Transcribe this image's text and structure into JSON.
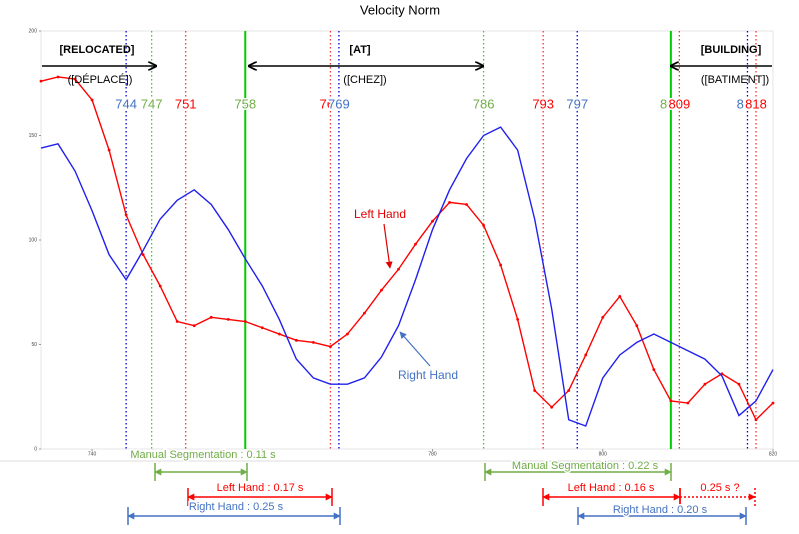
{
  "chart_data": {
    "type": "line",
    "title": "Velocity Norm",
    "xlim": [
      734,
      820
    ],
    "xticks": [
      740,
      760,
      780,
      800,
      820
    ],
    "ylim": [
      0,
      200
    ],
    "yticks": [
      0,
      50,
      100,
      150,
      200
    ],
    "x": [
      734,
      736,
      738,
      740,
      742,
      744,
      746,
      748,
      750,
      752,
      754,
      756,
      758,
      760,
      762,
      764,
      766,
      768,
      770,
      772,
      774,
      776,
      778,
      780,
      782,
      784,
      786,
      788,
      790,
      792,
      794,
      796,
      798,
      800,
      802,
      804,
      806,
      808,
      810,
      812,
      814,
      816,
      818,
      820
    ],
    "series": [
      {
        "name": "Left Hand",
        "color": "#ff0000",
        "markers": true,
        "values": [
          176,
          178,
          177,
          167,
          143,
          112,
          93,
          78,
          61,
          59,
          63,
          62,
          61,
          58,
          55,
          52,
          51,
          49,
          55,
          65,
          76,
          86,
          98,
          109,
          118,
          117,
          107,
          88,
          62,
          28,
          20,
          28,
          45,
          63,
          73,
          59,
          38,
          23,
          22,
          31,
          36,
          31,
          14,
          22
        ]
      },
      {
        "name": "Right Hand",
        "color": "#2020ee",
        "markers": false,
        "values": [
          144,
          146,
          133,
          114,
          93,
          81,
          95,
          110,
          119,
          124,
          117,
          105,
          91,
          78,
          62,
          43,
          34,
          31,
          31,
          34,
          44,
          59,
          81,
          105,
          124,
          139,
          150,
          154,
          143,
          110,
          67,
          14,
          11,
          34,
          45,
          51,
          55,
          51,
          47,
          43,
          35,
          16,
          23,
          38
        ]
      }
    ],
    "frame_markers": [
      {
        "value": 744,
        "color": "#0000cc",
        "label_color": "#4472c4",
        "style": "dotted"
      },
      {
        "value": 747,
        "color": "#33cc33",
        "label_color": "#70ad47",
        "style": "dotted"
      },
      {
        "value": 751,
        "color": "#ff3333",
        "label_color": "#ff0000",
        "style": "dotted"
      },
      {
        "value": 758,
        "color": "#00cc00",
        "label_color": "#70ad47",
        "style": "solid"
      },
      {
        "value": 768,
        "color": "#ff3333",
        "label_color": "#ff0000",
        "style": "dotted"
      },
      {
        "value": 769,
        "color": "#0000cc",
        "label_color": "#4472c4",
        "style": "dotted"
      },
      {
        "value": 786,
        "color": "#33cc33",
        "label_color": "#70ad47",
        "style": "dotted"
      },
      {
        "value": 793,
        "color": "#ff3333",
        "label_color": "#ff0000",
        "style": "dotted"
      },
      {
        "value": 797,
        "color": "#0000cc",
        "label_color": "#4472c4",
        "style": "dotted"
      },
      {
        "value": 808,
        "color": "#00cc00",
        "label_color": "#70ad47",
        "style": "solid"
      },
      {
        "value": 809,
        "color": "#ff3333",
        "label_color": "#ff0000",
        "style": "dotted"
      },
      {
        "value": 817,
        "color": "#0000cc",
        "label_color": "#4472c4",
        "style": "dotted"
      },
      {
        "value": 818,
        "color": "#ff3333",
        "label_color": "#ff0000",
        "style": "dotted"
      }
    ],
    "signs": [
      {
        "label": "[RELOCATED]",
        "translation": "([DÉPLACÉ])"
      },
      {
        "label": "[AT]",
        "translation": "([CHEZ])"
      },
      {
        "label": "[BUILDING]",
        "translation": "([BATIMENT])"
      }
    ],
    "segments": [
      {
        "label": "Manual Segmentation : 0.11 s",
        "color": "#70ad47"
      },
      {
        "label": "Left Hand : 0.17 s",
        "color": "#ff0000"
      },
      {
        "label": "Right Hand : 0.25 s",
        "color": "#4472c4"
      },
      {
        "label": "Manual Segmentation : 0.22 s",
        "color": "#70ad47"
      },
      {
        "label": "Left Hand : 0.16 s",
        "color": "#ff0000"
      },
      {
        "label": "0.25 s ?",
        "color": "#ff0000"
      },
      {
        "label": "Right Hand : 0.20 s",
        "color": "#4472c4"
      }
    ]
  }
}
